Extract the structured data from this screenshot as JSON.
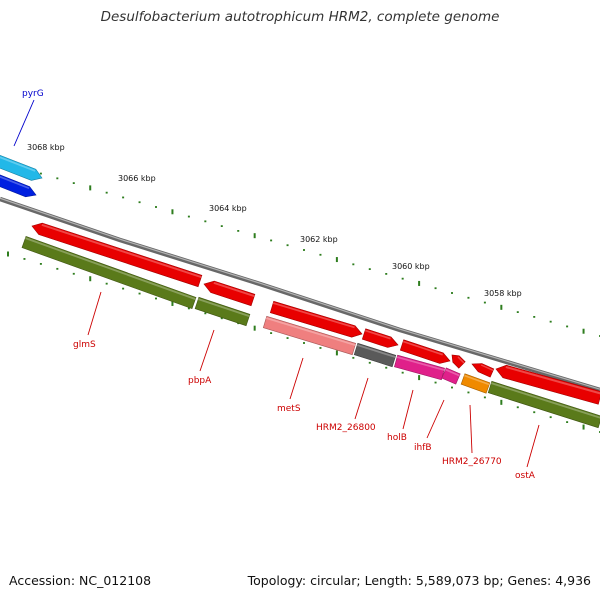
{
  "title": "Desulfobacterium autotrophicum HRM2, complete genome",
  "accession": "Accession: NC_012108",
  "topology": "Topology: circular; Length: 5,589,073 bp; Genes: 4,936",
  "colors": {
    "backbone": "#8a8a8a",
    "tick": "#2e7d1e",
    "gene_label": "#cc0000",
    "pyrG_label": "#0000cc",
    "cds_red": "#e80000",
    "rna_green": "#5a7a1a",
    "light_blue": "#22b8e8",
    "blue": "#0020e0",
    "salmon": "#ef7f7f",
    "dark_gray": "#5a5a5a",
    "magenta": "#e0208a",
    "orange": "#f08a00"
  },
  "scale_labels": [
    "3068 kbp",
    "3066 kbp",
    "3064 kbp",
    "3062 kbp",
    "3060 kbp",
    "3058 kbp"
  ],
  "gene_labels": [
    {
      "name": "pyrG",
      "color": "pyrG_label"
    },
    {
      "name": "glmS",
      "color": "gene_label"
    },
    {
      "name": "pbpA",
      "color": "gene_label"
    },
    {
      "name": "metS",
      "color": "gene_label"
    },
    {
      "name": "HRM2_26800",
      "color": "gene_label"
    },
    {
      "name": "holB",
      "color": "gene_label"
    },
    {
      "name": "ihfB",
      "color": "gene_label"
    },
    {
      "name": "HRM2_26770",
      "color": "gene_label"
    },
    {
      "name": "ostA",
      "color": "gene_label"
    }
  ]
}
